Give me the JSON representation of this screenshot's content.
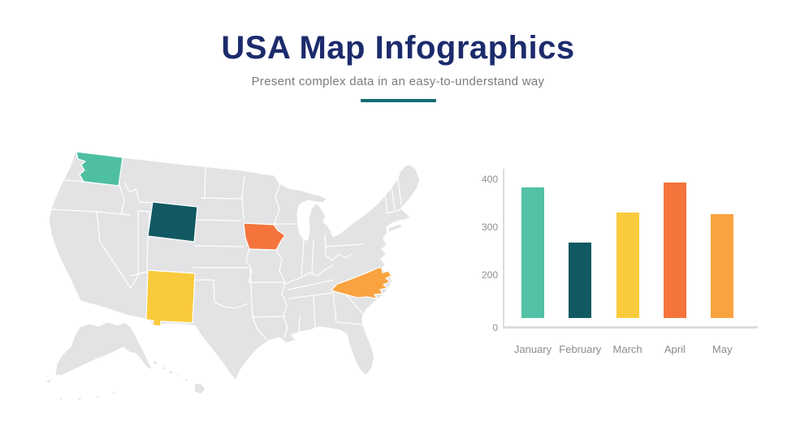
{
  "slide": {
    "title": "USA Map Infographics",
    "subtitle": "Present complex data in an easy-to-understand way",
    "title_color": "#1C2B6C",
    "subtitle_color": "#7B7B7B",
    "divider_color": "#156E74",
    "background_color": "#FFFFFF"
  },
  "map": {
    "base_color": "#E3E3E5",
    "border_color": "#FFFFFF",
    "highlighted_states": [
      {
        "name": "Washington",
        "color": "#4FBFA2"
      },
      {
        "name": "Wyoming",
        "color": "#105962"
      },
      {
        "name": "Iowa",
        "color": "#F4743C"
      },
      {
        "name": "New Mexico",
        "color": "#F9CB3C"
      },
      {
        "name": "North Carolina",
        "color": "#F9A340"
      }
    ]
  },
  "chart_data": {
    "type": "bar",
    "categories": [
      "January",
      "February",
      "March",
      "April",
      "May"
    ],
    "values": [
      385,
      270,
      333,
      395,
      328
    ],
    "bar_colors": [
      "#52C1A5",
      "#105962",
      "#F9CB3C",
      "#F4743C",
      "#F9A340"
    ],
    "yticks": [
      400,
      300,
      200,
      0
    ],
    "ylim": [
      0,
      400
    ],
    "title": "",
    "xlabel": "",
    "ylabel": "",
    "grid": false,
    "legend_position": "none",
    "axis_color": "#DCDCDC",
    "tick_label_color": "#8F8F8F"
  }
}
